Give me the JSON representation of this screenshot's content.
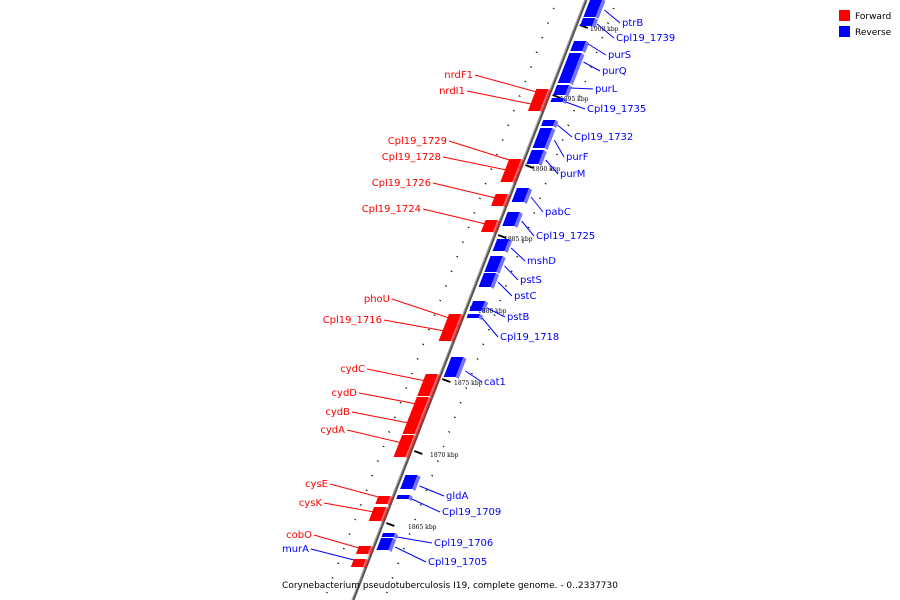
{
  "legend": {
    "forward_label": "Forward",
    "reverse_label": "Reverse",
    "forward_color": "#ff0000",
    "reverse_color": "#0000ff"
  },
  "caption": "Corynebacterium pseudotuberculosis I19, complete genome. - 0..2337730",
  "scale_labels": [
    "1900 kbp",
    "1895 kbp",
    "1890 kbp",
    "1885 kbp",
    "1880 kbp",
    "1875 kbp",
    "1870 kbp",
    "1865 kbp"
  ],
  "forward_genes": [
    "nrdF1",
    "nrdI1",
    "Cpl19_1729",
    "Cpl19_1728",
    "Cpl19_1726",
    "Cpl19_1724",
    "phoU",
    "Cpl19_1716",
    "cydC",
    "cydD",
    "cydB",
    "cydA",
    "cysE",
    "cysK",
    "cobO",
    "murA"
  ],
  "reverse_genes": [
    "ptrB",
    "Cpl19_1739",
    "purS",
    "purQ",
    "purL",
    "Cpl19_1735",
    "Cpl19_1732",
    "purF",
    "purM",
    "pabC",
    "Cpl19_1725",
    "mshD",
    "pstS",
    "pstC",
    "pstB",
    "Cpl19_1718",
    "cat1",
    "gldA",
    "Cpl19_1709",
    "Cpl19_1706",
    "Cpl19_1705"
  ]
}
